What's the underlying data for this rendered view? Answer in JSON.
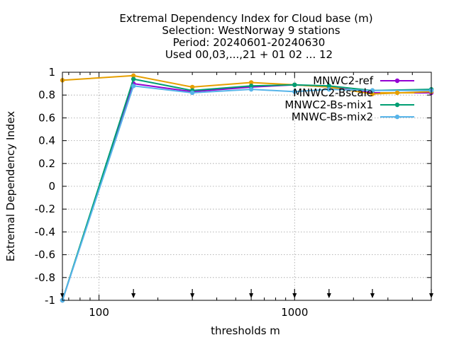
{
  "chart_data": {
    "type": "line",
    "title_lines": [
      "Extremal Dependency Index  for Cloud base (m)",
      "Selection: WestNorway      9 stations",
      "Period: 20240601-20240630",
      "Used 00,03,...,21 + 01 02 ... 12"
    ],
    "xlabel": "thresholds m",
    "ylabel": "Extremal Dependency Index",
    "x_scale": "log",
    "xlim": [
      65,
      5000
    ],
    "ylim": [
      -1,
      1
    ],
    "x_ticks": [
      100,
      1000
    ],
    "x_tick_labels": [
      "100",
      "1000"
    ],
    "x_minor_ticks": [
      70,
      80,
      90,
      200,
      300,
      400,
      500,
      600,
      700,
      800,
      900,
      2000,
      3000,
      4000,
      5000
    ],
    "y_ticks": [
      -1,
      -0.8,
      -0.6,
      -0.4,
      -0.2,
      0,
      0.2,
      0.4,
      0.6,
      0.8,
      1
    ],
    "y_tick_labels": [
      "-1",
      "-0.8",
      "-0.6",
      "-0.4",
      "-0.2",
      "0",
      "0.2",
      "0.4",
      "0.6",
      "0.8",
      "1"
    ],
    "grid": true,
    "legend_position": "top-right",
    "threshold_arrows_x": [
      65,
      150,
      300,
      600,
      1000,
      1500,
      2500,
      5000
    ],
    "series": [
      {
        "name": "MNWC2-ref",
        "color": "#9400d3",
        "marker": "circle",
        "x": [
          65,
          150,
          300,
          600,
          1000,
          1500,
          2500,
          5000
        ],
        "y": [
          -1,
          0.9,
          0.83,
          0.87,
          0.89,
          0.87,
          0.82,
          0.82
        ]
      },
      {
        "name": "MNWC2-Bscale",
        "color": "#e69f00",
        "marker": "circle",
        "x": [
          65,
          150,
          300,
          600,
          1000,
          1500,
          2500,
          5000
        ],
        "y": [
          0.93,
          0.97,
          0.87,
          0.91,
          0.89,
          0.87,
          0.81,
          0.83
        ]
      },
      {
        "name": "MNWC2-Bs-mix1",
        "color": "#009e73",
        "marker": "circle",
        "x": [
          65,
          150,
          300,
          600,
          1000,
          1500,
          2500,
          5000
        ],
        "y": [
          -1,
          0.94,
          0.84,
          0.88,
          0.89,
          0.88,
          0.84,
          0.85
        ]
      },
      {
        "name": "MNWC-Bs-mix2",
        "color": "#56b4e9",
        "marker": "circle",
        "x": [
          65,
          150,
          300,
          600,
          1000,
          1500,
          2500,
          5000
        ],
        "y": [
          -1,
          0.88,
          0.82,
          0.85,
          0.83,
          0.85,
          0.84,
          0.84
        ]
      }
    ]
  }
}
